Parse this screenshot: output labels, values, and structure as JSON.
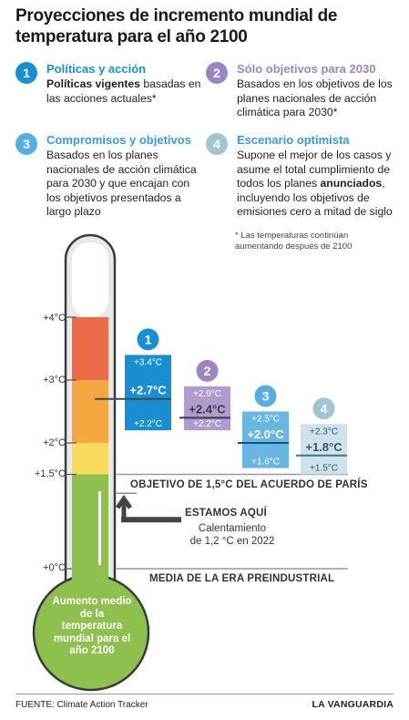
{
  "title": "Proyecciones de incremento mundial de temperatura para el año 2100",
  "scenarios": [
    {
      "num": "1",
      "title": "Políticas y acción",
      "desc_bold": "Políticas vigentes",
      "desc": " basadas en las acciones actuales*",
      "color": "#1a8fd0"
    },
    {
      "num": "2",
      "title": "Sólo objetivos para 2030",
      "desc_bold": "",
      "desc": "Basados en los objetivos de los planes nacionales de acción climática para 2030*",
      "color": "#9c86c0"
    },
    {
      "num": "3",
      "title": "Compromisos y objetivos",
      "desc_bold": "",
      "desc": "Basados en los planes nacionales de acción climática para 2030 y que encajan con los objetivos presentados a largo plazo",
      "color": "#5aaedf"
    },
    {
      "num": "4",
      "title": "Escenario optimista",
      "desc_bold": "",
      "desc": "Supone el mejor de los casos y asume el total cumplimiento de todos los planes anunciados, incluyendo los objetivos de emisiones cero a mitad de siglo",
      "color": "#a4c4d2"
    }
  ],
  "note": "* Las temperaturas continúan aumentando después de 2100",
  "thermometer": {
    "ticks": [
      {
        "label": "+4°C",
        "value": 4
      },
      {
        "label": "+3°C",
        "value": 3
      },
      {
        "label": "+2°C",
        "value": 2
      },
      {
        "label": "+1,5°C",
        "value": 1.5
      },
      {
        "label": "+0°C",
        "value": 0
      }
    ],
    "bulb_text": "Aumento medio de la temperatura mundial para el año 2100"
  },
  "paris_label": "OBJETIVO DE 1,5°C DEL ACUERDO DE PARÍS",
  "here": {
    "label": "ESTAMOS AQUÍ",
    "sub1": "Calentamiento",
    "sub2": "de 1,2 °C en 2022",
    "value": 1.2
  },
  "preindustrial_label": "MEDIA DE LA ERA PREINDUSTRIAL",
  "chart_data": {
    "type": "bar",
    "ylim": [
      0,
      4
    ],
    "series": [
      {
        "num": "1",
        "high": 3.4,
        "mean": 2.7,
        "low": 2.2,
        "high_label": "+3.4°C",
        "mean_label": "+2.7°C",
        "low_label": "+2.2°C",
        "fill": "#1a8fd0",
        "line": "#3a4a5a",
        "text": "#ffffff",
        "badge": "#1a8fd0"
      },
      {
        "num": "2",
        "high": 2.9,
        "mean": 2.4,
        "low": 2.2,
        "high_label": "+2.9°C",
        "mean_label": "+2.4°C",
        "low_label": "+2.2°C",
        "fill": "#ae9ccc",
        "line": "#3a3a4a",
        "text": "#ffffff",
        "badge": "#9c86c0"
      },
      {
        "num": "3",
        "high": 2.5,
        "mean": 2.0,
        "low": 1.6,
        "high_label": "+2.5°C",
        "mean_label": "+2.0°C",
        "low_label": "+1.6°C",
        "fill": "#6ab6e3",
        "line": "#1d4f7c",
        "text": "#ffffff",
        "badge": "#5aaedf"
      },
      {
        "num": "4",
        "high": 2.3,
        "mean": 1.8,
        "low": 1.5,
        "high_label": "+2.3°C",
        "mean_label": "+1.8°C",
        "low_label": "+1.5°C",
        "fill": "#cfe1ea",
        "line": "#3f7a80",
        "text": "#2f5a66",
        "badge": "#a4c4d2"
      }
    ]
  },
  "footer_source": "FUENTE: Climate Action Tracker",
  "footer_brand": "LA VANGUARDIA"
}
